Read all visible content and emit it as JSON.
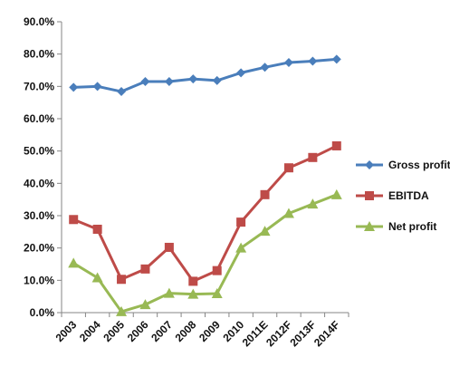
{
  "chart_data": {
    "type": "line",
    "title": "",
    "xlabel": "",
    "ylabel": "",
    "categories": [
      "2003",
      "2004",
      "2005",
      "2006",
      "2007",
      "2008",
      "2009",
      "2010",
      "2011E",
      "2012F",
      "2013F",
      "2014F"
    ],
    "ylim": [
      0,
      90
    ],
    "y_ticks": [
      0,
      10,
      20,
      30,
      40,
      50,
      60,
      70,
      80,
      90
    ],
    "y_tick_labels": [
      "0.0%",
      "10.0%",
      "20.0%",
      "30.0%",
      "40.0%",
      "50.0%",
      "60.0%",
      "70.0%",
      "80.0%",
      "90.0%"
    ],
    "grid": false,
    "legend_position": "right",
    "series": [
      {
        "name": "Gross profit",
        "color": "#4a7ebb",
        "marker": "diamond",
        "values": [
          69.7,
          70.0,
          68.4,
          71.5,
          71.5,
          72.3,
          71.8,
          74.2,
          75.9,
          77.4,
          77.8,
          78.4
        ]
      },
      {
        "name": "EBITDA",
        "color": "#be4b48",
        "marker": "square",
        "values": [
          28.8,
          25.8,
          10.3,
          13.5,
          20.2,
          9.7,
          13.0,
          28.0,
          36.5,
          44.8,
          48.0,
          51.6
        ]
      },
      {
        "name": "Net profit",
        "color": "#98b954",
        "marker": "triangle",
        "values": [
          15.3,
          10.8,
          0.3,
          2.5,
          6.0,
          5.7,
          5.9,
          20.0,
          25.2,
          30.7,
          33.6,
          36.5
        ]
      }
    ]
  }
}
